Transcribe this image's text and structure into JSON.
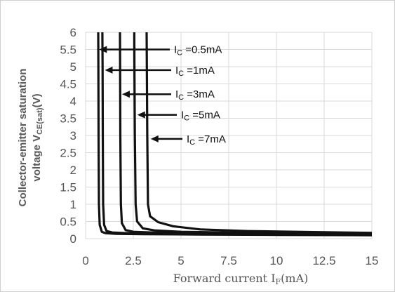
{
  "chart_data": {
    "type": "line",
    "title": "",
    "xlabel": "Forward current IF(mA)",
    "xlabel_main": "Forward current I",
    "xlabel_sub": "F",
    "xlabel_unit": "(mA)",
    "ylabel_line1": "Collector-emitter saturation",
    "ylabel_line2_main": "voltage V",
    "ylabel_line2_sub": "CE(sat)",
    "ylabel_line2_unit": "(V)",
    "xlim": [
      0,
      15
    ],
    "ylim": [
      0,
      6
    ],
    "x_ticks": [
      "0",
      "2.5",
      "5",
      "7.5",
      "10",
      "12.5",
      "15"
    ],
    "y_ticks": [
      "0",
      "0.5",
      "1",
      "1.5",
      "2",
      "2.5",
      "3",
      "3.5",
      "4",
      "4.5",
      "5",
      "5.5",
      "6"
    ],
    "grid": true,
    "series": [
      {
        "name": "IC =0.5mA",
        "label_main": "I",
        "label_sub": "C",
        "label_rest": " =0.5mA",
        "arrow_at": [
          0.6,
          5.5
        ],
        "x": [
          0.66,
          0.67,
          0.68,
          0.7,
          0.74,
          0.85,
          1.05,
          1.6,
          3,
          6,
          10,
          15
        ],
        "y": [
          6,
          5,
          3,
          1,
          0.4,
          0.2,
          0.16,
          0.14,
          0.13,
          0.12,
          0.11,
          0.1
        ]
      },
      {
        "name": "IC =1mA",
        "label_main": "I",
        "label_sub": "C",
        "label_rest": " =1mA",
        "arrow_at": [
          0.9,
          4.9
        ],
        "x": [
          0.88,
          0.89,
          0.9,
          0.92,
          0.97,
          1.1,
          1.4,
          2.2,
          4,
          7,
          11,
          15
        ],
        "y": [
          6,
          5,
          3,
          1,
          0.4,
          0.22,
          0.18,
          0.16,
          0.15,
          0.14,
          0.13,
          0.12
        ]
      },
      {
        "name": "IC =3mA",
        "label_main": "I",
        "label_sub": "C",
        "label_rest": " =3mA",
        "arrow_at": [
          1.8,
          4.2
        ],
        "x": [
          1.8,
          1.81,
          1.82,
          1.85,
          1.9,
          2.1,
          2.5,
          3.5,
          5.5,
          8.5,
          12,
          15
        ],
        "y": [
          6,
          5,
          3,
          1,
          0.45,
          0.25,
          0.2,
          0.18,
          0.17,
          0.16,
          0.15,
          0.14
        ]
      },
      {
        "name": "IC =5mA",
        "label_main": "I",
        "label_sub": "C",
        "label_rest": " =5mA",
        "arrow_at": [
          2.6,
          3.6
        ],
        "x": [
          2.55,
          2.56,
          2.58,
          2.62,
          2.7,
          3,
          3.6,
          5,
          7.5,
          10.5,
          13,
          15
        ],
        "y": [
          6,
          5,
          3,
          1,
          0.5,
          0.3,
          0.24,
          0.2,
          0.18,
          0.17,
          0.16,
          0.15
        ]
      },
      {
        "name": "IC =7mA",
        "label_main": "I",
        "label_sub": "C",
        "label_rest": " =7mA",
        "arrow_at": [
          3.3,
          2.9
        ],
        "x": [
          3.2,
          3.21,
          3.23,
          3.27,
          3.38,
          3.8,
          4.6,
          6,
          8.5,
          11,
          13.5,
          15
        ],
        "y": [
          6,
          5,
          3,
          1,
          0.65,
          0.48,
          0.36,
          0.27,
          0.22,
          0.2,
          0.18,
          0.17
        ]
      }
    ]
  }
}
